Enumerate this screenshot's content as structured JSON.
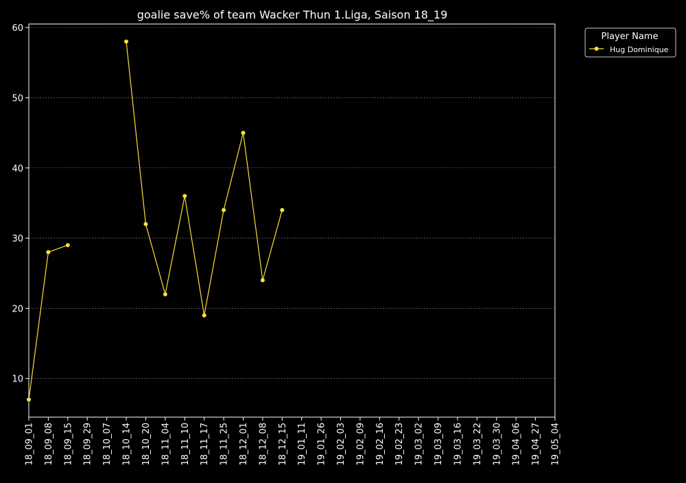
{
  "chart_data": {
    "type": "line",
    "title": "goalie save% of team Wacker Thun 1.Liga, Saison 18_19",
    "xlabel": "",
    "ylabel": "",
    "categories": [
      "18_09_01",
      "18_09_08",
      "18_09_15",
      "18_09_29",
      "18_10_07",
      "18_10_14",
      "18_10_20",
      "18_11_04",
      "18_11_10",
      "18_11_17",
      "18_11_25",
      "18_12_01",
      "18_12_08",
      "18_12_15",
      "19_01_11",
      "19_01_26",
      "19_02_03",
      "19_02_09",
      "19_02_16",
      "19_02_23",
      "19_03_02",
      "19_03_09",
      "19_03_16",
      "19_03_22",
      "19_03_30",
      "19_04_06",
      "19_04_27",
      "19_05_04"
    ],
    "ylim": [
      4.5,
      60.5
    ],
    "yticks": [
      10,
      20,
      30,
      40,
      50,
      60
    ],
    "grid": true,
    "legend": {
      "title": "Player Name",
      "placement": "outside-top-right"
    },
    "series": [
      {
        "name": "Hug Dominique",
        "color": "#ffe135",
        "values": [
          7,
          28,
          29,
          null,
          null,
          58,
          32,
          22,
          36,
          19,
          34,
          45,
          24,
          34,
          null,
          null,
          null,
          null,
          null,
          null,
          null,
          null,
          null,
          null,
          null,
          null,
          null,
          null
        ]
      }
    ]
  }
}
